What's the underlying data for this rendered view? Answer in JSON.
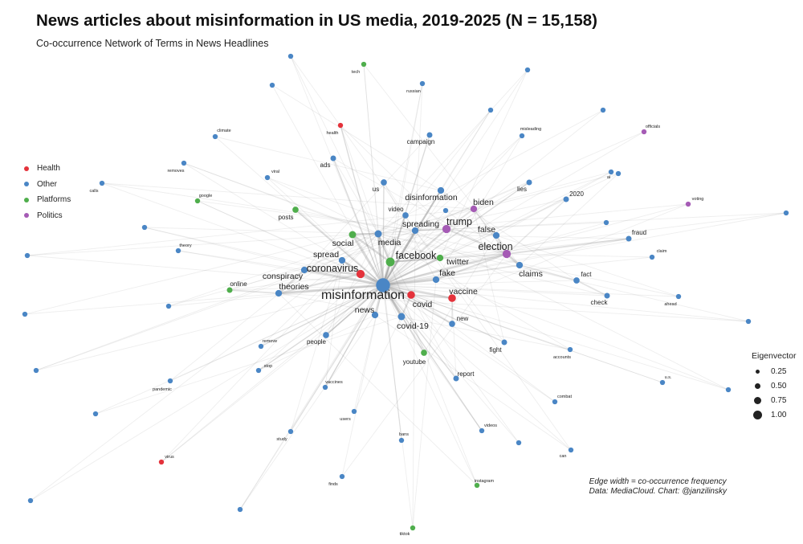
{
  "chart_data": {
    "type": "network",
    "title": "News articles about misinformation in US media, 2019-2025 (N = 15,158)",
    "subtitle": "Co-occurrence Network of Terms in News Headlines",
    "caption": [
      "Edge width = co-occurrence frequency",
      "Data: MediaCloud. Chart: @janzilinsky"
    ],
    "color_legend": [
      {
        "label": "Health",
        "color": "#e4323b"
      },
      {
        "label": "Other",
        "color": "#4a86c5"
      },
      {
        "label": "Platforms",
        "color": "#4fae4c"
      },
      {
        "label": "Politics",
        "color": "#a55bb5"
      }
    ],
    "size_legend": {
      "title": "Eigenvector",
      "values": [
        0.25,
        0.5,
        0.75,
        1.0
      ],
      "labels": [
        "0.25",
        "0.50",
        "0.75",
        "1.00"
      ]
    },
    "nodes": [
      {
        "label": "misinformation",
        "group": "Other",
        "eigenvector": 1.0
      },
      {
        "label": "facebook",
        "group": "Platforms",
        "eigenvector": 0.5
      },
      {
        "label": "election",
        "group": "Politics",
        "eigenvector": 0.45
      },
      {
        "label": "trump",
        "group": "Politics",
        "eigenvector": 0.45
      },
      {
        "label": "coronavirus",
        "group": "Health",
        "eigenvector": 0.45
      },
      {
        "label": "covid",
        "group": "Health",
        "eigenvector": 0.4
      },
      {
        "label": "vaccine",
        "group": "Health",
        "eigenvector": 0.4
      },
      {
        "label": "media",
        "group": "Other",
        "eigenvector": 0.35
      },
      {
        "label": "covid-19",
        "group": "Other",
        "eigenvector": 0.35
      },
      {
        "label": "claims",
        "group": "Other",
        "eigenvector": 0.3
      },
      {
        "label": "fake",
        "group": "Other",
        "eigenvector": 0.3
      },
      {
        "label": "social",
        "group": "Platforms",
        "eigenvector": 0.35
      },
      {
        "label": "twitter",
        "group": "Platforms",
        "eigenvector": 0.3
      },
      {
        "label": "news",
        "group": "Other",
        "eigenvector": 0.3
      },
      {
        "label": "spreading",
        "group": "Other",
        "eigenvector": 0.3
      },
      {
        "label": "false",
        "group": "Other",
        "eigenvector": 0.3
      },
      {
        "label": "spread",
        "group": "Other",
        "eigenvector": 0.3
      },
      {
        "label": "conspiracy",
        "group": "Other",
        "eigenvector": 0.3
      },
      {
        "label": "theories",
        "group": "Other",
        "eigenvector": 0.3
      },
      {
        "label": "biden",
        "group": "Politics",
        "eigenvector": 0.3
      },
      {
        "label": "disinformation",
        "group": "Other",
        "eigenvector": 0.3
      },
      {
        "label": "new",
        "group": "Other",
        "eigenvector": 0.25
      },
      {
        "label": "video",
        "group": "Other",
        "eigenvector": 0.25
      },
      {
        "label": "us",
        "group": "Other",
        "eigenvector": 0.25
      },
      {
        "label": "posts",
        "group": "Platforms",
        "eigenvector": 0.25
      },
      {
        "label": "youtube",
        "group": "Platforms",
        "eigenvector": 0.25
      },
      {
        "label": "people",
        "group": "Other",
        "eigenvector": 0.25
      },
      {
        "label": "fact",
        "group": "Other",
        "eigenvector": 0.25
      },
      {
        "label": "fraud",
        "group": "Other",
        "eigenvector": 0.2
      },
      {
        "label": "online",
        "group": "Platforms",
        "eigenvector": 0.2
      },
      {
        "label": "campaign",
        "group": "Other",
        "eigenvector": 0.2
      },
      {
        "label": "ads",
        "group": "Other",
        "eigenvector": 0.2
      },
      {
        "label": "lies",
        "group": "Other",
        "eigenvector": 0.2
      },
      {
        "label": "2020",
        "group": "Other",
        "eigenvector": 0.2
      },
      {
        "label": "report",
        "group": "Other",
        "eigenvector": 0.2
      },
      {
        "label": "fight",
        "group": "Other",
        "eigenvector": 0.2
      },
      {
        "label": "check",
        "group": "Other",
        "eigenvector": 0.2
      },
      {
        "label": "health",
        "group": "Health",
        "eigenvector": 0.15
      },
      {
        "label": "vaccines",
        "group": "Other",
        "eigenvector": 0.15
      },
      {
        "label": "videos",
        "group": "Other",
        "eigenvector": 0.15
      },
      {
        "label": "remove",
        "group": "Other",
        "eigenvector": 0.15
      },
      {
        "label": "stop",
        "group": "Other",
        "eigenvector": 0.15
      },
      {
        "label": "combat",
        "group": "Other",
        "eigenvector": 0.15
      },
      {
        "label": "accounts",
        "group": "Other",
        "eigenvector": 0.15
      },
      {
        "label": "misleading",
        "group": "Other",
        "eigenvector": 0.15
      },
      {
        "label": "claim",
        "group": "Other",
        "eigenvector": 0.15
      },
      {
        "label": "ahead",
        "group": "Other",
        "eigenvector": 0.15
      },
      {
        "label": "viral",
        "group": "Other",
        "eigenvector": 0.15
      },
      {
        "label": "climate",
        "group": "Other",
        "eigenvector": 0.15
      },
      {
        "label": "removes",
        "group": "Other",
        "eigenvector": 0.15
      },
      {
        "label": "google",
        "group": "Platforms",
        "eigenvector": 0.15
      },
      {
        "label": "theory",
        "group": "Other",
        "eigenvector": 0.15
      },
      {
        "label": "tech",
        "group": "Platforms",
        "eigenvector": 0.15
      },
      {
        "label": "russian",
        "group": "Other",
        "eigenvector": 0.15
      },
      {
        "label": "officials",
        "group": "Politics",
        "eigenvector": 0.15
      },
      {
        "label": "voting",
        "group": "Politics",
        "eigenvector": 0.15
      },
      {
        "label": "calls",
        "group": "Other",
        "eigenvector": 0.15
      },
      {
        "label": "pandemic",
        "group": "Other",
        "eigenvector": 0.15
      },
      {
        "label": "virus",
        "group": "Health",
        "eigenvector": 0.15
      },
      {
        "label": "study",
        "group": "Other",
        "eigenvector": 0.15
      },
      {
        "label": "users",
        "group": "Other",
        "eigenvector": 0.15
      },
      {
        "label": "bans",
        "group": "Other",
        "eigenvector": 0.15
      },
      {
        "label": "can",
        "group": "Other",
        "eigenvector": 0.15
      },
      {
        "label": "u.s.",
        "group": "Other",
        "eigenvector": 0.15
      },
      {
        "label": "instagram",
        "group": "Platforms",
        "eigenvector": 0.15
      },
      {
        "label": "tiktok",
        "group": "Platforms",
        "eigenvector": 0.15
      },
      {
        "label": "finds",
        "group": "Other",
        "eigenvector": 0.15
      },
      {
        "label": "ai",
        "group": "Other",
        "eigenvector": 0.15
      },
      {
        "label": "",
        "group": "Other",
        "eigenvector": 0.15
      },
      {
        "label": "",
        "group": "Other",
        "eigenvector": 0.15
      },
      {
        "label": "",
        "group": "Other",
        "eigenvector": 0.15
      },
      {
        "label": "",
        "group": "Other",
        "eigenvector": 0.15
      },
      {
        "label": "",
        "group": "Other",
        "eigenvector": 0.15
      },
      {
        "label": "",
        "group": "Other",
        "eigenvector": 0.15
      },
      {
        "label": "",
        "group": "Other",
        "eigenvector": 0.15
      },
      {
        "label": "",
        "group": "Other",
        "eigenvector": 0.15
      },
      {
        "label": "",
        "group": "Other",
        "eigenvector": 0.15
      },
      {
        "label": "",
        "group": "Other",
        "eigenvector": 0.15
      },
      {
        "label": "",
        "group": "Other",
        "eigenvector": 0.15
      },
      {
        "label": "",
        "group": "Other",
        "eigenvector": 0.15
      },
      {
        "label": "",
        "group": "Other",
        "eigenvector": 0.15
      },
      {
        "label": "",
        "group": "Other",
        "eigenvector": 0.15
      },
      {
        "label": "",
        "group": "Other",
        "eigenvector": 0.15
      },
      {
        "label": "",
        "group": "Other",
        "eigenvector": 0.15
      },
      {
        "label": "",
        "group": "Other",
        "eigenvector": 0.15
      },
      {
        "label": "",
        "group": "Other",
        "eigenvector": 0.15
      },
      {
        "label": "",
        "group": "Other",
        "eigenvector": 0.15
      },
      {
        "label": "",
        "group": "Other",
        "eigenvector": 0.15
      },
      {
        "label": "",
        "group": "Other",
        "eigenvector": 0.15
      }
    ]
  }
}
